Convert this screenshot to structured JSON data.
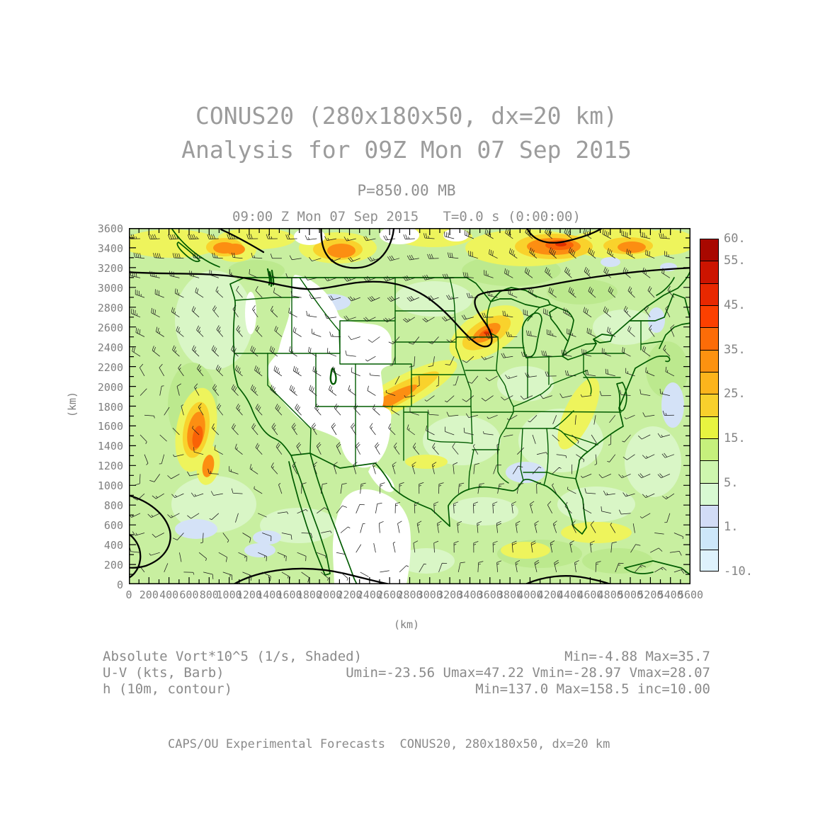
{
  "title_line1": "CONUS20 (280x180x50, dx=20 km)",
  "title_line2": "Analysis for 09Z Mon 07 Sep 2015",
  "pressure_label": "P=850.00 MB",
  "time_label": "09:00 Z Mon 07 Sep 2015   T=0.0 s (0:00:00)",
  "axes": {
    "x_unit": "(km)",
    "y_unit": "(km)",
    "x_ticks": [
      "0",
      "200",
      "400",
      "600",
      "800",
      "1000",
      "1200",
      "1400",
      "1600",
      "1800",
      "2000",
      "2200",
      "2400",
      "2600",
      "2800",
      "3000",
      "3200",
      "3400",
      "3600",
      "3800",
      "4000",
      "4200",
      "4400",
      "4600",
      "4800",
      "5000",
      "5200",
      "5400",
      "5600"
    ],
    "y_ticks": [
      "3600",
      "3400",
      "3200",
      "3000",
      "2800",
      "2600",
      "2400",
      "2200",
      "2000",
      "1800",
      "1600",
      "1400",
      "1200",
      "1000",
      "800",
      "600",
      "400",
      "200",
      "0"
    ]
  },
  "colorbar": {
    "box_colors": [
      "#a80800",
      "#cc1400",
      "#e82800",
      "#fc4000",
      "#fc6c08",
      "#fc9210",
      "#fcb41c",
      "#f8d02c",
      "#e8f440",
      "#c6f07c",
      "#cef6ae",
      "#d8fad2",
      "#d2dcf6",
      "#cde7fa",
      "#def2fc"
    ],
    "labels": [
      "60.",
      "55.",
      "45.",
      "35.",
      "25.",
      "15.",
      "5.",
      "1.",
      "-10."
    ],
    "label_boundary_indices": [
      0,
      1,
      3,
      5,
      7,
      9,
      11,
      13,
      15
    ]
  },
  "legend": {
    "rows": [
      {
        "left": "Absolute Vort*10^5 (1/s, Shaded)",
        "right": "Min=-4.88 Max=35.7"
      },
      {
        "left": "U-V (kts, Barb)",
        "right": "Umin=-23.56 Umax=47.22 Vmin=-28.97 Vmax=28.07"
      },
      {
        "left": "h (10m, contour)",
        "right": "Min=137.0 Max=158.5 inc=10.00"
      }
    ]
  },
  "footer": "CAPS/OU Experimental Forecasts  CONUS20, 280x180x50, dx=20 km",
  "chart_data": {
    "type": "heatmap",
    "title": "CONUS20 (280x180x50, dx=20 km)",
    "subtitle": "Analysis for 09Z Mon 07 Sep 2015",
    "level": "P=850.00 MB",
    "valid_time": "09:00 Z Mon 07 Sep 2015",
    "forecast_time": "T=0.0 s (0:00:00)",
    "xlabel": "(km)",
    "ylabel": "(km)",
    "xlim": [
      0,
      5600
    ],
    "ylim": [
      0,
      3600
    ],
    "x_tick_interval": 200,
    "y_tick_interval": 200,
    "grid": false,
    "legend_position": "right",
    "fields": [
      {
        "name": "Absolute Vort*10^5",
        "units": "1/s",
        "render": "Shaded",
        "min": -4.88,
        "max": 35.7
      },
      {
        "name": "U-V",
        "units": "kts",
        "render": "Barb",
        "umin": -23.56,
        "umax": 47.22,
        "vmin": -28.97,
        "vmax": 28.07
      },
      {
        "name": "h",
        "units": "10m",
        "render": "contour",
        "min": 137.0,
        "max": 158.5,
        "inc": 10.0
      }
    ],
    "colorbar_levels": [
      60,
      55,
      45,
      35,
      25,
      15,
      5,
      1,
      -10
    ],
    "colorbar_colors": [
      "#a80800",
      "#cc1400",
      "#e82800",
      "#fc4000",
      "#fc6c08",
      "#fc9210",
      "#fcb41c",
      "#f8d02c",
      "#e8f440",
      "#c6f07c",
      "#cef6ae",
      "#d8fad2",
      "#d2dcf6",
      "#cde7fa",
      "#def2fc"
    ]
  }
}
